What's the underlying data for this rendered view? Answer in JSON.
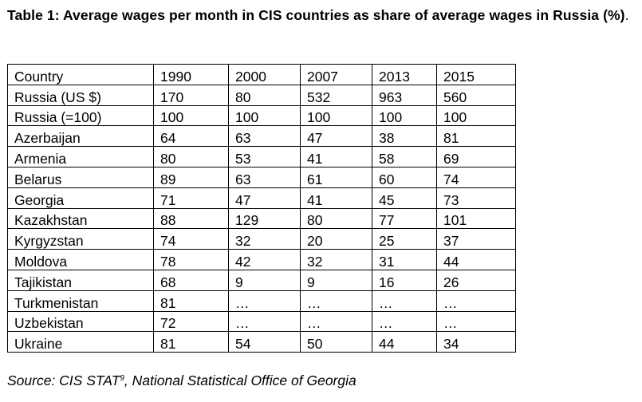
{
  "title": {
    "text": "Table 1: Average wages per month in CIS countries as share of average wages in Russia (%)",
    "period": "."
  },
  "table": {
    "headers": [
      "Country",
      "1990",
      "2000",
      "2007",
      "2013",
      "2015"
    ],
    "rows": [
      [
        "Russia (US $)",
        "170",
        "80",
        "532",
        "963",
        "560"
      ],
      [
        "Russia (=100)",
        "100",
        "100",
        "100",
        "100",
        "100"
      ],
      [
        "Azerbaijan",
        "64",
        "63",
        "47",
        "38",
        "81"
      ],
      [
        "Armenia",
        "80",
        "53",
        "41",
        "58",
        "69"
      ],
      [
        "Belarus",
        "89",
        "63",
        "61",
        "60",
        "74"
      ],
      [
        "Georgia",
        "71",
        "47",
        "41",
        "45",
        "73"
      ],
      [
        "Kazakhstan",
        "88",
        "129",
        "80",
        "77",
        "101"
      ],
      [
        "Kyrgyzstan",
        "74",
        "32",
        "20",
        "25",
        "37"
      ],
      [
        "Moldova",
        "78",
        "42",
        "32",
        "31",
        "44"
      ],
      [
        "Tajikistan",
        "68",
        "9",
        "9",
        "16",
        "26"
      ],
      [
        "Turkmenistan",
        "81",
        "…",
        "…",
        "…",
        "…"
      ],
      [
        "Uzbekistan",
        "72",
        "…",
        "…",
        "…",
        "…"
      ],
      [
        "Ukraine",
        "81",
        "54",
        "50",
        "44",
        "34"
      ]
    ]
  },
  "source": {
    "text": "Source: CIS STAT",
    "footnote": "9",
    "rest": ", National Statistical Office of Georgia"
  }
}
